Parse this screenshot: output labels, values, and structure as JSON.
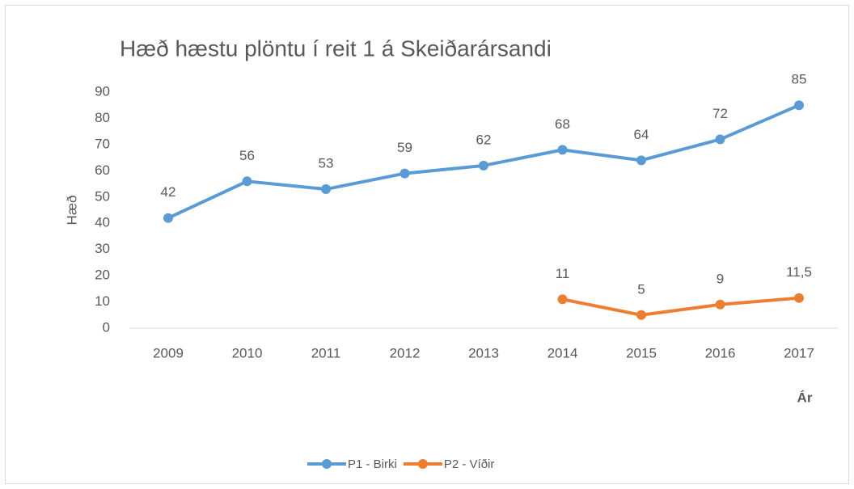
{
  "chart_data": {
    "type": "line",
    "title": "Hæð hæstu plöntu í reit 1 á Skeiðarársandi",
    "x_label": "Ár",
    "y_label": "Hæð",
    "categories": [
      "2009",
      "2010",
      "2011",
      "2012",
      "2013",
      "2014",
      "2015",
      "2016",
      "2017"
    ],
    "series": [
      {
        "name": "P1 - Birki",
        "color": "#5b9bd5",
        "values": [
          42,
          56,
          53,
          59,
          62,
          68,
          64,
          72,
          85
        ]
      },
      {
        "name": "P2 - Víðir",
        "color": "#ed7d31",
        "values": [
          null,
          null,
          null,
          null,
          null,
          11,
          5,
          9,
          11.5
        ],
        "value_labels": [
          null,
          null,
          null,
          null,
          null,
          "11",
          "5",
          "9",
          "11,5"
        ]
      }
    ],
    "ylim": [
      0,
      90
    ],
    "yticks": [
      0,
      10,
      20,
      30,
      40,
      50,
      60,
      70,
      80,
      90
    ],
    "grid": false,
    "legend": "bottom"
  }
}
